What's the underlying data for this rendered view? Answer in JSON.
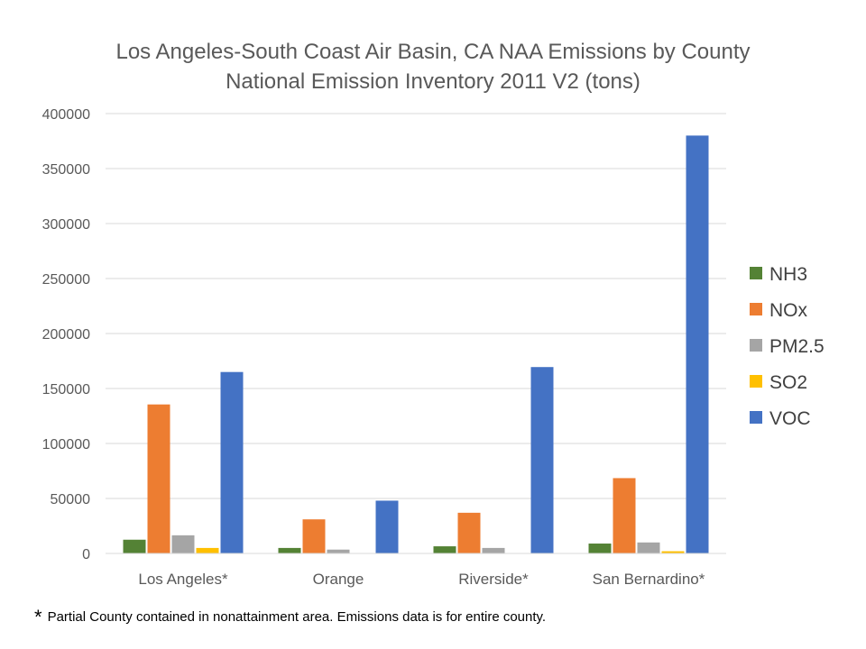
{
  "chart_data": {
    "type": "bar",
    "title": [
      "Los Angeles-South Coast Air Basin, CA NAA Emissions by County",
      "National Emission Inventory 2011 V2 (tons)"
    ],
    "categories": [
      "Los Angeles*",
      "Orange",
      "Riverside*",
      "San Bernardino*"
    ],
    "series": [
      {
        "name": "NH3",
        "color": "#548235",
        "values": [
          12500,
          5000,
          6500,
          9000
        ]
      },
      {
        "name": "NOx",
        "color": "#ed7d31",
        "values": [
          135500,
          31000,
          37000,
          68500
        ]
      },
      {
        "name": "PM2.5",
        "color": "#a5a5a5",
        "values": [
          16500,
          3500,
          5000,
          10000
        ]
      },
      {
        "name": "SO2",
        "color": "#ffc000",
        "values": [
          5000,
          0,
          0,
          2000
        ]
      },
      {
        "name": "VOC",
        "color": "#4472c4",
        "values": [
          165000,
          48000,
          169500,
          380000
        ]
      }
    ],
    "ylim": [
      0,
      400000
    ],
    "yticks": [
      0,
      50000,
      100000,
      150000,
      200000,
      250000,
      300000,
      350000,
      400000
    ],
    "ytick_labels": [
      "0",
      "50000",
      "100000",
      "150000",
      "200000",
      "250000",
      "300000",
      "350000",
      "400000"
    ],
    "grid": true,
    "legend_position": "right"
  },
  "footnote": {
    "marker": "*",
    "text": "Partial County contained in nonattainment area.  Emissions data is for entire county."
  }
}
